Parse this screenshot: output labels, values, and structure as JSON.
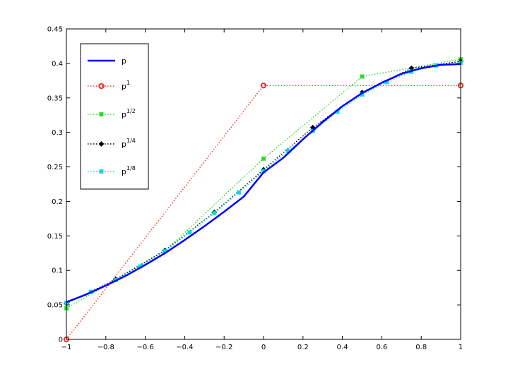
{
  "chart_data": {
    "type": "line",
    "title": "",
    "xlabel": "",
    "ylabel": "",
    "xlim": [
      -1,
      1
    ],
    "ylim": [
      0,
      0.45
    ],
    "xticks": [
      -1,
      -0.8,
      -0.6,
      -0.4,
      -0.2,
      0,
      0.2,
      0.4,
      0.6,
      0.8,
      1
    ],
    "xtick_labels": [
      "−1",
      "−0.8",
      "−0.6",
      "−0.4",
      "−0.2",
      "0",
      "0.2",
      "0.4",
      "0.6",
      "0.8",
      "1"
    ],
    "yticks": [
      0,
      0.05,
      0.1,
      0.15,
      0.2,
      0.25,
      0.3,
      0.35,
      0.4,
      0.45
    ],
    "ytick_labels": [
      "0",
      "0.05",
      "0.1",
      "0.15",
      "0.2",
      "0.25",
      "0.3",
      "0.35",
      "0.4",
      "0.45"
    ],
    "grid": false,
    "legend_position": "top-left",
    "series": [
      {
        "key": "p",
        "name": "p",
        "name_base": "p",
        "name_sup": "",
        "color": "#0000ff",
        "style": "solid",
        "marker": "none",
        "x": [
          -1,
          -0.9,
          -0.8,
          -0.7,
          -0.6,
          -0.5,
          -0.4,
          -0.3,
          -0.2,
          -0.1,
          0,
          0.1,
          0.2,
          0.3,
          0.4,
          0.5,
          0.6,
          0.7,
          0.8,
          0.9,
          1
        ],
        "y": [
          0.054,
          0.065,
          0.078,
          0.092,
          0.108,
          0.125,
          0.144,
          0.164,
          0.185,
          0.207,
          0.242,
          0.263,
          0.29,
          0.315,
          0.338,
          0.357,
          0.372,
          0.385,
          0.393,
          0.398,
          0.399
        ]
      },
      {
        "key": "p1",
        "name": "p1",
        "name_base": "p",
        "name_sup": "1",
        "color": "#ff2a2a",
        "style": "dotted",
        "marker": "circle",
        "x": [
          -1,
          0,
          1
        ],
        "y": [
          0.0,
          0.368,
          0.368
        ]
      },
      {
        "key": "p12",
        "name": "p1/2",
        "name_base": "p",
        "name_sup": "1/2",
        "color": "#22dd22",
        "style": "dotted",
        "marker": "x",
        "x": [
          -1,
          -0.5,
          0,
          0.5,
          1
        ],
        "y": [
          0.045,
          0.128,
          0.262,
          0.381,
          0.406
        ]
      },
      {
        "key": "p14",
        "name": "p1/4",
        "name_base": "p",
        "name_sup": "1/4",
        "color": "#000000",
        "style": "dotted",
        "marker": "diamond",
        "x": [
          -1,
          -0.75,
          -0.5,
          -0.25,
          0,
          0.25,
          0.5,
          0.75,
          1
        ],
        "y": [
          0.052,
          0.087,
          0.129,
          0.184,
          0.246,
          0.307,
          0.358,
          0.393,
          0.403
        ]
      },
      {
        "key": "p18",
        "name": "p1/8",
        "name_base": "p",
        "name_sup": "1/8",
        "color": "#00dddd",
        "style": "dotted",
        "marker": "x",
        "x": [
          -1,
          -0.875,
          -0.75,
          -0.625,
          -0.5,
          -0.375,
          -0.25,
          -0.125,
          0,
          0.125,
          0.25,
          0.375,
          0.5,
          0.625,
          0.75,
          0.875,
          1
        ],
        "y": [
          0.053,
          0.069,
          0.086,
          0.106,
          0.128,
          0.155,
          0.183,
          0.213,
          0.244,
          0.273,
          0.302,
          0.33,
          0.355,
          0.373,
          0.388,
          0.397,
          0.401
        ]
      }
    ]
  }
}
